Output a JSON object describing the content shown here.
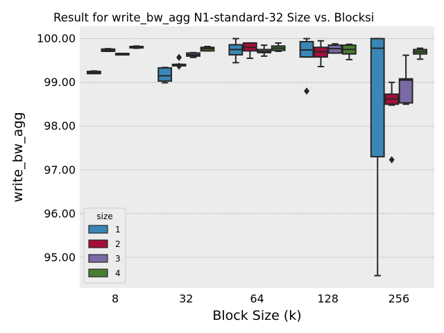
{
  "chart_data": {
    "type": "boxplot",
    "title": "Result for write_bw_agg N1-standard-32 Size vs. Blocksi",
    "xlabel": "Block Size (k)",
    "ylabel": "write_bw_agg",
    "categories": [
      "8",
      "32",
      "64",
      "128",
      "256"
    ],
    "ylim": [
      94.3,
      100.28
    ],
    "yticks": [
      95.0,
      96.0,
      97.0,
      98.0,
      99.0,
      100.0
    ],
    "ytick_labels": [
      "95.00",
      "96.00",
      "97.00",
      "98.00",
      "99.00",
      "100.00"
    ],
    "grid": true,
    "legend": {
      "title": "size",
      "position": "lower-left"
    },
    "series": [
      {
        "name": "1",
        "color": "#3a87b7",
        "boxes": [
          {
            "min": 99.2,
            "q1": 99.2,
            "median": 99.23,
            "q3": 99.25,
            "max": 99.26,
            "outliers": []
          },
          {
            "min": 98.99,
            "q1": 99.03,
            "median": 99.15,
            "q3": 99.33,
            "max": 99.34,
            "outliers": []
          },
          {
            "min": 99.45,
            "q1": 99.63,
            "median": 99.75,
            "q3": 99.86,
            "max": 100.0,
            "outliers": []
          },
          {
            "min": 99.58,
            "q1": 99.58,
            "median": 99.74,
            "q3": 99.93,
            "max": 100.0,
            "outliers": [
              98.8
            ]
          },
          {
            "min": 94.58,
            "q1": 97.3,
            "median": 99.78,
            "q3": 100.0,
            "max": 100.0,
            "outliers": []
          }
        ]
      },
      {
        "name": "2",
        "color": "#a60f3b",
        "boxes": [
          {
            "min": 99.71,
            "q1": 99.71,
            "median": 99.73,
            "q3": 99.76,
            "max": 99.77,
            "outliers": []
          },
          {
            "min": 99.41,
            "q1": 99.41,
            "median": 99.41,
            "q3": 99.41,
            "max": 99.41,
            "outliers": [
              99.37,
              99.57
            ]
          },
          {
            "min": 99.55,
            "q1": 99.72,
            "median": 99.8,
            "q3": 99.9,
            "max": 99.9,
            "outliers": []
          },
          {
            "min": 99.36,
            "q1": 99.58,
            "median": 99.7,
            "q3": 99.8,
            "max": 99.95,
            "outliers": []
          },
          {
            "min": 98.48,
            "q1": 98.5,
            "median": 98.62,
            "q3": 98.73,
            "max": 99.0,
            "outliers": [
              97.23
            ]
          }
        ]
      },
      {
        "name": "3",
        "color": "#7b69a6",
        "boxes": [
          {
            "min": 99.64,
            "q1": 99.64,
            "median": 99.65,
            "q3": 99.66,
            "max": 99.66,
            "outliers": []
          },
          {
            "min": 99.57,
            "q1": 99.6,
            "median": 99.63,
            "q3": 99.67,
            "max": 99.68,
            "outliers": []
          },
          {
            "min": 99.6,
            "q1": 99.68,
            "median": 99.71,
            "q3": 99.75,
            "max": 99.85,
            "outliers": []
          },
          {
            "min": 99.67,
            "q1": 99.67,
            "median": 99.77,
            "q3": 99.85,
            "max": 99.88,
            "outliers": []
          },
          {
            "min": 98.5,
            "q1": 98.53,
            "median": 99.05,
            "q3": 99.08,
            "max": 99.62,
            "outliers": []
          }
        ]
      },
      {
        "name": "4",
        "color": "#477e30",
        "boxes": [
          {
            "min": 99.78,
            "q1": 99.79,
            "median": 99.81,
            "q3": 99.82,
            "max": 99.83,
            "outliers": []
          },
          {
            "min": 99.72,
            "q1": 99.72,
            "median": 99.77,
            "q3": 99.8,
            "max": 99.82,
            "outliers": []
          },
          {
            "min": 99.71,
            "q1": 99.73,
            "median": 99.78,
            "q3": 99.83,
            "max": 99.9,
            "outliers": []
          },
          {
            "min": 99.52,
            "q1": 99.65,
            "median": 99.75,
            "q3": 99.85,
            "max": 99.87,
            "outliers": []
          },
          {
            "min": 99.53,
            "q1": 99.65,
            "median": 99.7,
            "q3": 99.75,
            "max": 99.78,
            "outliers": []
          }
        ]
      }
    ]
  }
}
